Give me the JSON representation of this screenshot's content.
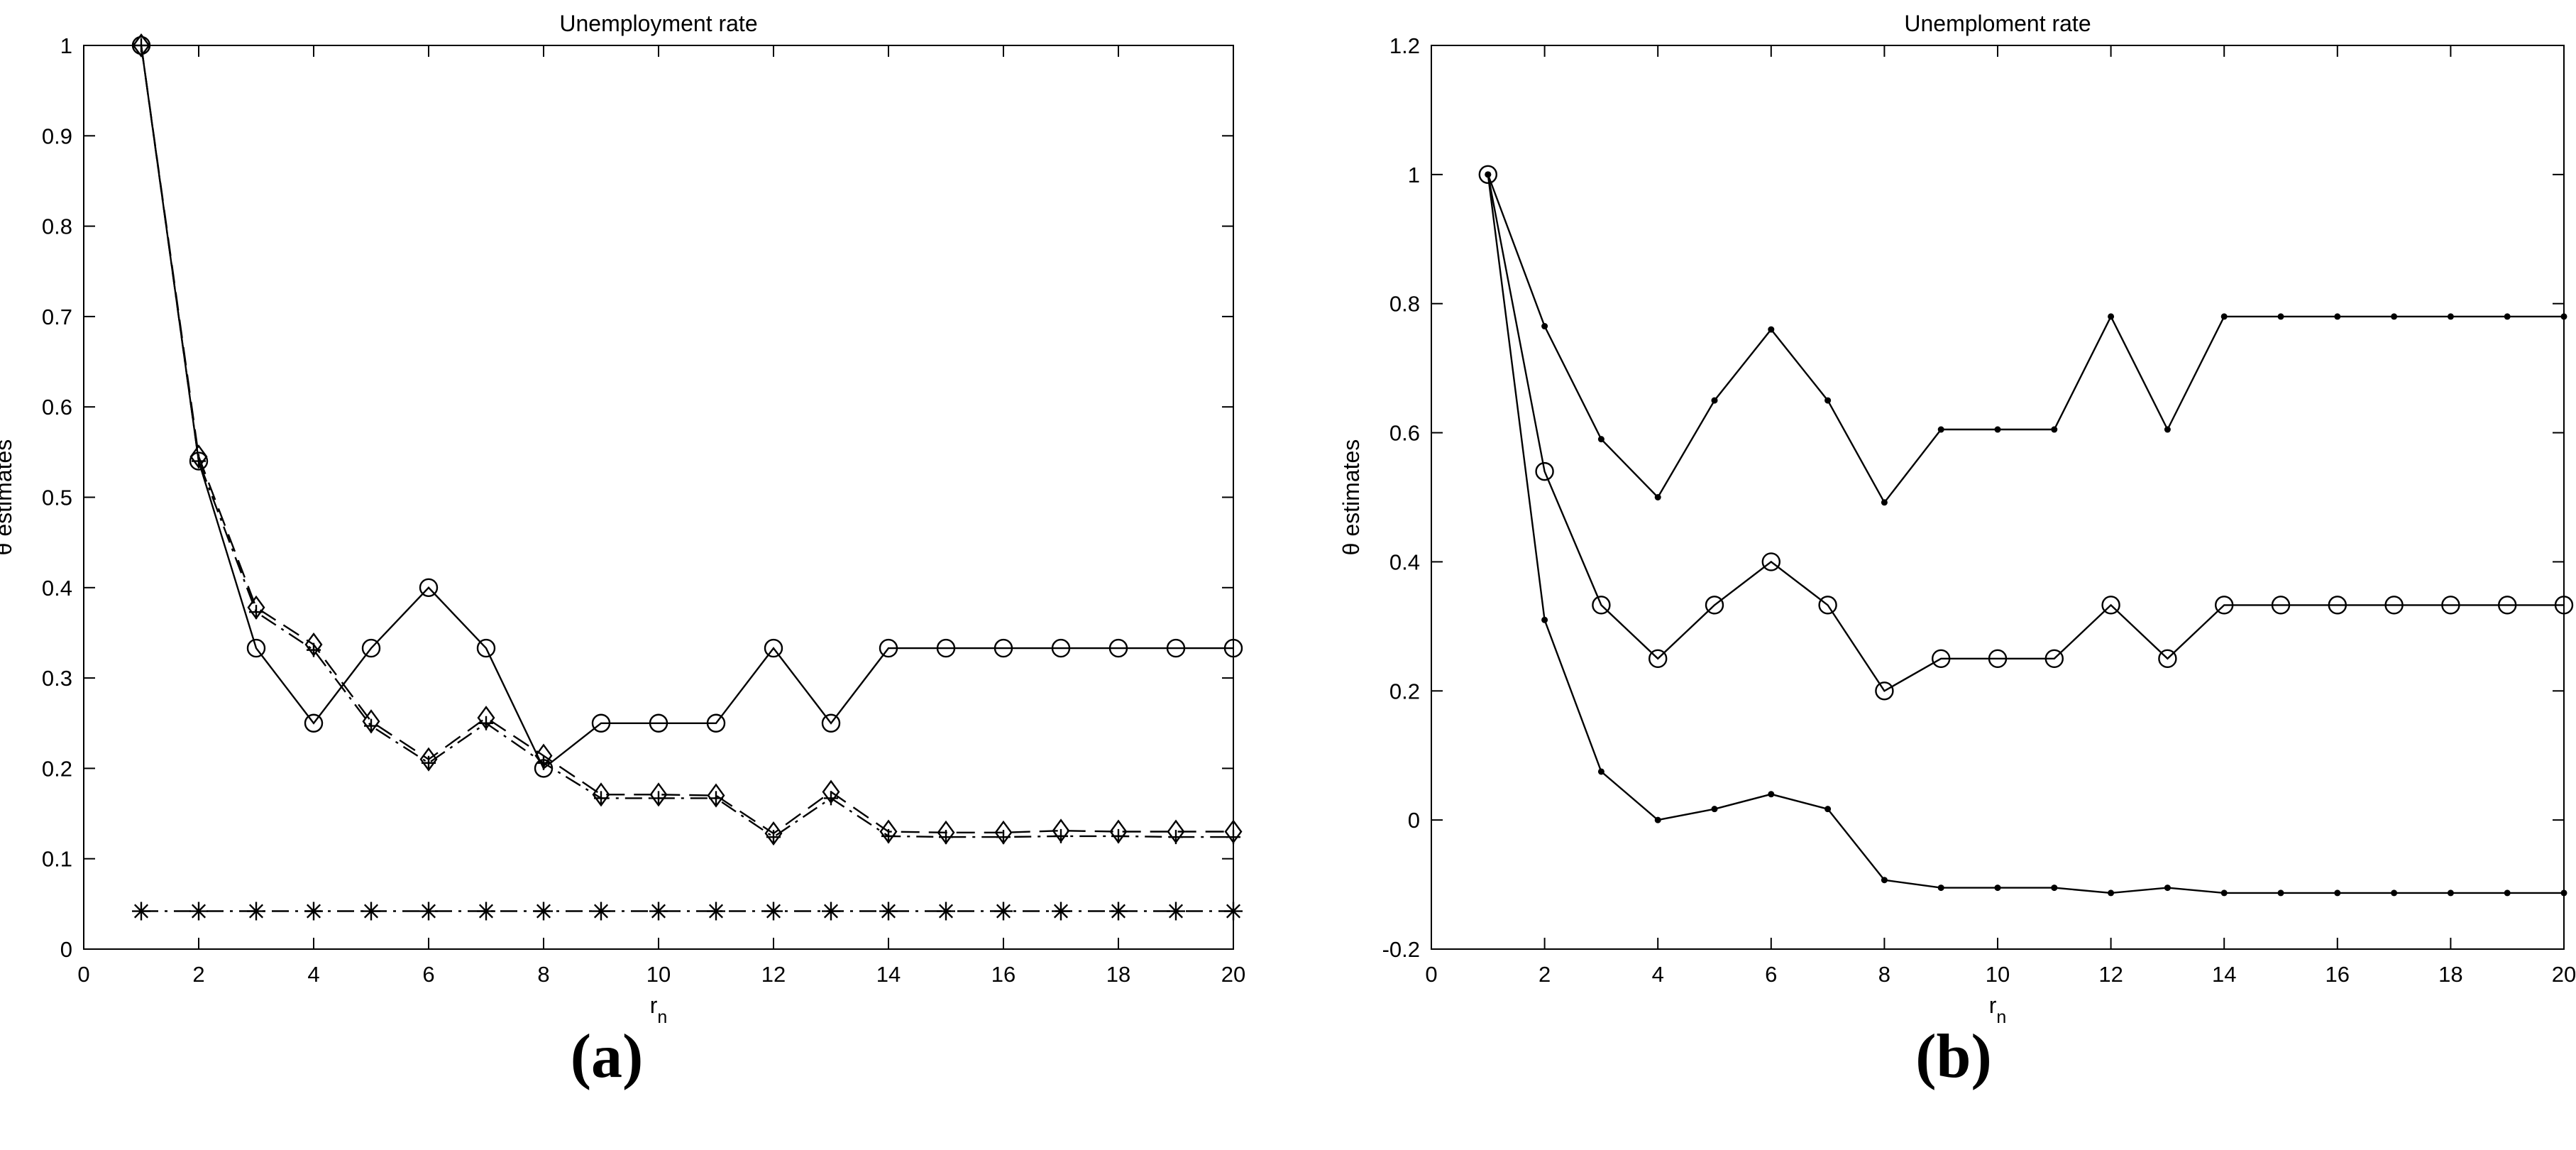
{
  "panels": [
    {
      "label_left": "(",
      "label_letter": "a",
      "label_right": ")"
    },
    {
      "label_left": "(",
      "label_letter": "b",
      "label_right": ")"
    }
  ],
  "chart_data": [
    {
      "type": "line",
      "title": "Unemployment rate",
      "xlabel": "r",
      "xlabel_subscript": "n",
      "ylabel": "θ estimates",
      "xlim": [
        0,
        20
      ],
      "ylim": [
        0,
        1
      ],
      "xticks": [
        0,
        2,
        4,
        6,
        8,
        10,
        12,
        14,
        16,
        18,
        20
      ],
      "yticks": [
        0,
        0.1,
        0.2,
        0.3,
        0.4,
        0.5,
        0.6,
        0.7,
        0.8,
        0.9,
        1
      ],
      "ytick_labels": [
        "0",
        "0.1",
        "0.2",
        "0.3",
        "0.4",
        "0.5",
        "0.6",
        "0.7",
        "0.8",
        "0.9",
        "1"
      ],
      "grid": false,
      "x": [
        1,
        2,
        3,
        4,
        5,
        6,
        7,
        8,
        9,
        10,
        11,
        12,
        13,
        14,
        15,
        16,
        17,
        18,
        19,
        20
      ],
      "series": [
        {
          "line": "solid",
          "marker": "circle",
          "values": [
            1,
            0.54,
            0.333,
            0.25,
            0.333,
            0.4,
            0.333,
            0.2,
            0.25,
            0.25,
            0.25,
            0.333,
            0.25,
            0.333,
            0.333,
            0.333,
            0.333,
            0.333,
            0.333,
            0.333
          ]
        },
        {
          "line": "dashed",
          "marker": "diamond",
          "values": [
            1,
            0.545,
            0.378,
            0.337,
            0.252,
            0.21,
            0.256,
            0.214,
            0.171,
            0.171,
            0.17,
            0.128,
            0.174,
            0.13,
            0.129,
            0.129,
            0.131,
            0.13,
            0.13,
            0.13
          ]
        },
        {
          "line": "dashdot",
          "marker": "plus",
          "values": [
            1,
            0.54,
            0.373,
            0.331,
            0.247,
            0.206,
            0.25,
            0.206,
            0.167,
            0.167,
            0.167,
            0.124,
            0.167,
            0.125,
            0.124,
            0.124,
            0.125,
            0.125,
            0.124,
            0.124
          ]
        },
        {
          "line": "dashdot",
          "marker": "star",
          "values": [
            0.042,
            0.042,
            0.042,
            0.042,
            0.042,
            0.042,
            0.042,
            0.042,
            0.042,
            0.042,
            0.042,
            0.042,
            0.042,
            0.042,
            0.042,
            0.042,
            0.042,
            0.042,
            0.042,
            0.042
          ]
        }
      ]
    },
    {
      "type": "line",
      "title": "Unemploment rate",
      "xlabel": "r",
      "xlabel_subscript": "n",
      "ylabel": "θ estimates",
      "xlim": [
        0,
        20
      ],
      "ylim": [
        -0.2,
        1.2
      ],
      "xticks": [
        0,
        2,
        4,
        6,
        8,
        10,
        12,
        14,
        16,
        18,
        20
      ],
      "yticks": [
        -0.2,
        0,
        0.2,
        0.4,
        0.6,
        0.8,
        1,
        1.2
      ],
      "ytick_labels": [
        "-0.2",
        "0",
        "0.2",
        "0.4",
        "0.6",
        "0.8",
        "1",
        "1.2"
      ],
      "grid": false,
      "x": [
        1,
        2,
        3,
        4,
        5,
        6,
        7,
        8,
        9,
        10,
        11,
        12,
        13,
        14,
        15,
        16,
        17,
        18,
        19,
        20
      ],
      "series": [
        {
          "line": "solid",
          "marker": "dot",
          "values": [
            1,
            0.765,
            0.59,
            0.5,
            0.65,
            0.76,
            0.65,
            0.492,
            0.605,
            0.605,
            0.605,
            0.78,
            0.605,
            0.78,
            0.78,
            0.78,
            0.78,
            0.78,
            0.78,
            0.78
          ]
        },
        {
          "line": "solid",
          "marker": "circle",
          "values": [
            1,
            0.54,
            0.333,
            0.25,
            0.333,
            0.4,
            0.333,
            0.2,
            0.25,
            0.25,
            0.25,
            0.333,
            0.25,
            0.333,
            0.333,
            0.333,
            0.333,
            0.333,
            0.333,
            0.333
          ]
        },
        {
          "line": "solid",
          "marker": "dot",
          "values": [
            1,
            0.31,
            0.075,
            0.0,
            0.017,
            0.04,
            0.017,
            -0.093,
            -0.105,
            -0.105,
            -0.105,
            -0.113,
            -0.105,
            -0.113,
            -0.113,
            -0.113,
            -0.113,
            -0.113,
            -0.113,
            -0.113
          ]
        }
      ]
    }
  ]
}
